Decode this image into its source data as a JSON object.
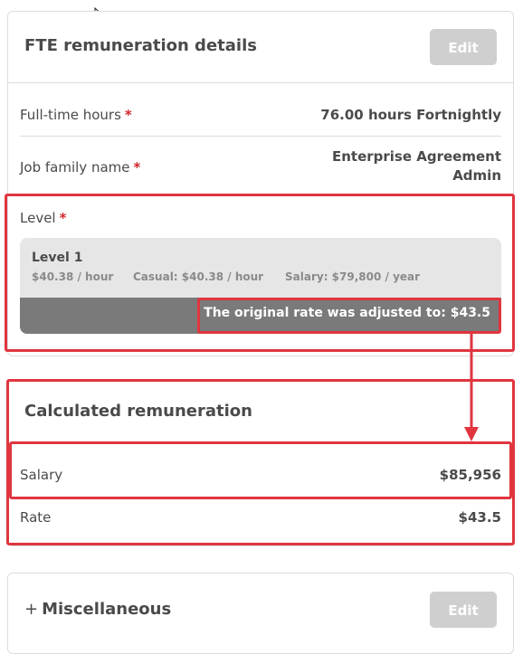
{
  "fte_card": {
    "title": "FTE remuneration details",
    "edit_label": "Edit",
    "full_time_hours": {
      "label": "Full-time hours",
      "required": "*",
      "value": "76.00 hours Fortnightly"
    },
    "job_family": {
      "label": "Job family name",
      "required": "*",
      "value_line1": "Enterprise Agreement",
      "value_line2": "Admin"
    },
    "level": {
      "label": "Level",
      "required": "*",
      "name": "Level 1",
      "hourly": "$40.38 / hour",
      "casual": "Casual: $40.38 / hour",
      "salary": "Salary: $79,800 / year",
      "adjusted_note": "The original rate was adjusted to: $43.5"
    }
  },
  "calc_card": {
    "title": "Calculated remuneration",
    "salary": {
      "label": "Salary",
      "value": "$85,956"
    },
    "rate": {
      "label": "Rate",
      "value": "$43.5"
    }
  },
  "misc_card": {
    "expand_icon": "+",
    "title": "Miscellaneous",
    "edit_label": "Edit"
  },
  "colors": {
    "highlight_red": "#e0353f",
    "required_red": "#d0262c",
    "disabled_button": "#cfcfcf",
    "level_bar": "#7a7a7a",
    "level_box": "#e6e6e6"
  },
  "icons": [
    "mouse-cursor-icon",
    "plus-icon",
    "arrow-down-icon"
  ]
}
